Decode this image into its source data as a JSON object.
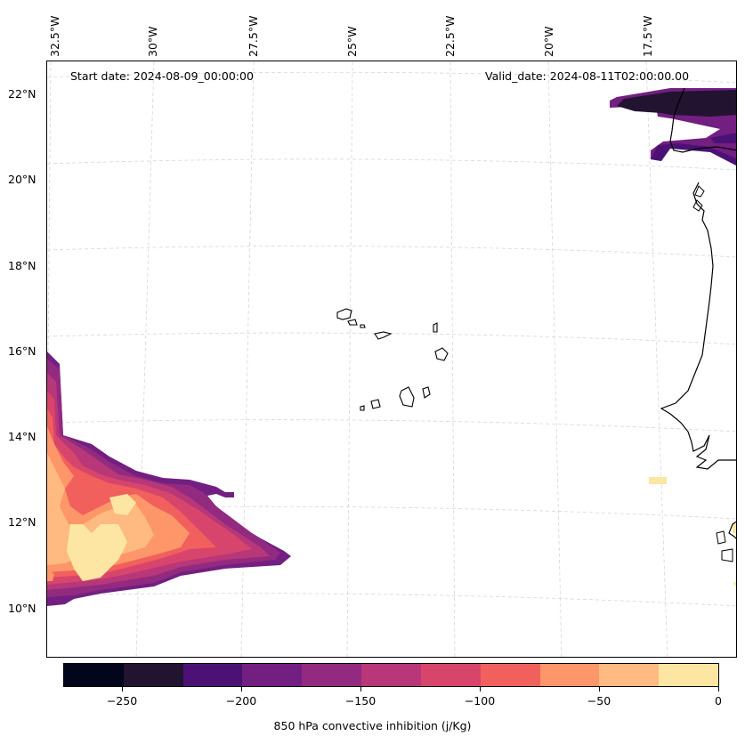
{
  "map": {
    "start_date": "Start date: 2024-08-09_00:00:00",
    "valid_date": "Valid_date: 2024-08-11T02:00:00.00",
    "longitude_labels": [
      "32.5°W",
      "30°W",
      "27.5°W",
      "25°W",
      "22.5°W",
      "20°W",
      "17.5°W"
    ],
    "latitude_labels": [
      "22°N",
      "20°N",
      "18°N",
      "16°N",
      "14°N",
      "12°N",
      "10°N"
    ],
    "features": [
      "Cape Verde islands",
      "West African coastline"
    ]
  },
  "colorbar": {
    "label": "850 hPa convective inhibition (j/Kg)",
    "tick_labels": [
      "−250",
      "−200",
      "−150",
      "−100",
      "−50",
      "0"
    ],
    "levels": [
      -275,
      -250,
      -225,
      -200,
      -175,
      -150,
      -125,
      -100,
      -75,
      -50,
      -25,
      0
    ],
    "colors": [
      "#03051a",
      "#221331",
      "#4c1175",
      "#721f81",
      "#922a80",
      "#b73779",
      "#d8456c",
      "#f1605d",
      "#fd9668",
      "#feba80",
      "#fde6a3"
    ]
  }
}
